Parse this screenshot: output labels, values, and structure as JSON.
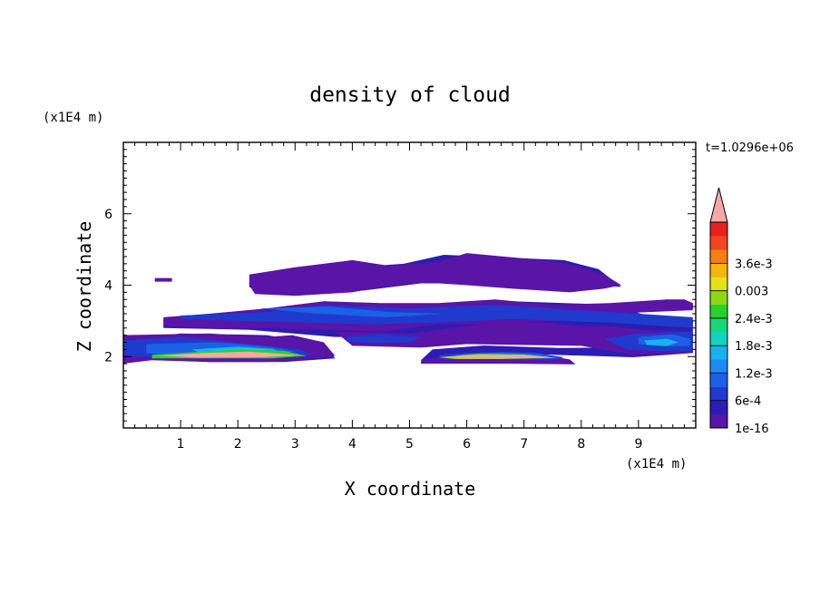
{
  "chart_data": {
    "type": "heatmap",
    "title": "density of cloud",
    "xlabel": "X coordinate",
    "ylabel": "Z coordinate",
    "x_unit": "(x1E4 m)",
    "y_unit": "(x1E4 m)",
    "time_label": "t=1.0296e+06",
    "xlim": [
      0,
      10
    ],
    "ylim": [
      0,
      8
    ],
    "x_ticks": [
      "1",
      "2",
      "3",
      "4",
      "5",
      "6",
      "7",
      "8",
      "9"
    ],
    "x_tick_values": [
      1,
      2,
      3,
      4,
      5,
      6,
      7,
      8,
      9
    ],
    "y_ticks": [
      "2",
      "4",
      "6"
    ],
    "y_tick_values": [
      2,
      4,
      6
    ],
    "colorbar": {
      "labels": [
        "1e-16",
        "6e-4",
        "1.2e-3",
        "1.8e-3",
        "2.4e-3",
        "0.003",
        "3.6e-3"
      ],
      "colors": [
        "#5a14a8",
        "#2c1cb4",
        "#1f3acc",
        "#1d60e8",
        "#1e88f5",
        "#17b4ec",
        "#14d2c0",
        "#19d67c",
        "#27d22a",
        "#8cd818",
        "#e2e218",
        "#f6b410",
        "#f47e14",
        "#f0461e",
        "#e8201e"
      ],
      "extend_color": "#f4a8a8"
    },
    "regions": [
      {
        "level": 1,
        "polygon": [
          [
            5.4,
            2.2
          ],
          [
            6.3,
            2.31
          ],
          [
            7.6,
            2.24
          ],
          [
            8.9,
            2.26
          ],
          [
            9.95,
            2.7
          ],
          [
            9.95,
            2.1
          ],
          [
            8.9,
            1.98
          ],
          [
            6.5,
            2.1
          ],
          [
            5.2,
            1.9
          ]
        ]
      },
      {
        "level": 1,
        "polygon": [
          [
            -0.02,
            2.4
          ],
          [
            1.0,
            2.65
          ],
          [
            2.5,
            2.6
          ],
          [
            3.5,
            2.35
          ],
          [
            3.7,
            1.95
          ],
          [
            2.8,
            1.85
          ],
          [
            1.5,
            1.85
          ],
          [
            0.5,
            1.95
          ],
          [
            -0.02,
            1.85
          ]
        ]
      },
      {
        "level": 1,
        "polygon": [
          [
            0.7,
            3.05
          ],
          [
            2.2,
            3.3
          ],
          [
            3.5,
            3.5
          ],
          [
            4.8,
            3.45
          ],
          [
            6.8,
            3.55
          ],
          [
            8.6,
            3.45
          ],
          [
            9.3,
            3.05
          ],
          [
            9.95,
            3.0
          ],
          [
            9.95,
            2.4
          ],
          [
            8.5,
            2.6
          ],
          [
            6.8,
            2.75
          ],
          [
            5.5,
            2.6
          ],
          [
            4.3,
            2.55
          ],
          [
            3.7,
            2.55
          ],
          [
            2.2,
            2.75
          ],
          [
            0.7,
            2.8
          ]
        ]
      },
      {
        "level": 1,
        "polygon": [
          [
            2.2,
            4.1
          ],
          [
            3.1,
            4.4
          ],
          [
            4.9,
            4.6
          ],
          [
            5.6,
            4.85
          ],
          [
            7.7,
            4.7
          ],
          [
            8.3,
            4.45
          ],
          [
            8.7,
            3.95
          ],
          [
            7.0,
            4.15
          ],
          [
            6.1,
            4.05
          ],
          [
            5.2,
            4.05
          ],
          [
            4.2,
            3.85
          ],
          [
            2.4,
            3.75
          ],
          [
            2.2,
            3.95
          ]
        ]
      },
      {
        "level": 0,
        "polygon": [
          [
            -0.02,
            2.6
          ],
          [
            1.5,
            2.65
          ],
          [
            2.5,
            2.55
          ],
          [
            2.95,
            2.6
          ],
          [
            3.5,
            2.4
          ],
          [
            3.7,
            2.02
          ],
          [
            3.0,
            1.9
          ],
          [
            2.5,
            1.85
          ],
          [
            1.5,
            1.85
          ],
          [
            0.5,
            1.9
          ],
          [
            -0.02,
            1.8
          ]
        ]
      },
      {
        "level": 0,
        "polygon": [
          [
            0.7,
            3.1
          ],
          [
            1.5,
            3.2
          ],
          [
            2.5,
            3.35
          ],
          [
            3.5,
            3.55
          ],
          [
            4.5,
            3.5
          ],
          [
            5.5,
            3.5
          ],
          [
            6.5,
            3.6
          ],
          [
            7.5,
            3.45
          ],
          [
            8.5,
            3.5
          ],
          [
            9.5,
            3.6
          ],
          [
            9.95,
            3.5
          ],
          [
            9.95,
            3.3
          ],
          [
            8.5,
            3.2
          ],
          [
            7.5,
            3.0
          ],
          [
            6.5,
            2.9
          ],
          [
            5.5,
            2.9
          ],
          [
            4.5,
            2.7
          ],
          [
            3.5,
            2.75
          ],
          [
            2.5,
            2.8
          ],
          [
            1.5,
            2.8
          ],
          [
            0.7,
            2.85
          ]
        ]
      },
      {
        "level": 0,
        "polygon": [
          [
            3.7,
            2.7
          ],
          [
            5.0,
            2.65
          ],
          [
            6.0,
            2.85
          ],
          [
            6.5,
            2.95
          ],
          [
            7.5,
            2.95
          ],
          [
            8.0,
            2.85
          ],
          [
            8.6,
            2.85
          ],
          [
            9.0,
            2.75
          ],
          [
            9.95,
            2.7
          ],
          [
            9.95,
            2.1
          ],
          [
            8.9,
            2.05
          ],
          [
            8.0,
            2.3
          ],
          [
            6.0,
            2.35
          ],
          [
            5.2,
            2.25
          ],
          [
            4.0,
            2.3
          ]
        ]
      },
      {
        "level": 0,
        "polygon": [
          [
            5.2,
            1.9
          ],
          [
            5.8,
            2.05
          ],
          [
            6.5,
            2.08
          ],
          [
            7.3,
            2.05
          ],
          [
            7.8,
            1.92
          ],
          [
            7.9,
            1.78
          ],
          [
            6.8,
            1.8
          ],
          [
            5.5,
            1.8
          ],
          [
            5.2,
            1.8
          ]
        ]
      },
      {
        "level": 0,
        "polygon": [
          [
            2.2,
            4.3
          ],
          [
            3.0,
            4.5
          ],
          [
            4.0,
            4.7
          ],
          [
            4.6,
            4.55
          ],
          [
            5.5,
            4.65
          ],
          [
            6.0,
            4.9
          ],
          [
            7.0,
            4.75
          ],
          [
            7.6,
            4.65
          ],
          [
            8.0,
            4.5
          ],
          [
            8.4,
            4.3
          ],
          [
            8.7,
            4.0
          ],
          [
            8.4,
            3.9
          ],
          [
            7.8,
            3.8
          ],
          [
            6.8,
            3.9
          ],
          [
            6.0,
            4.0
          ],
          [
            5.5,
            4.05
          ],
          [
            5.0,
            4.05
          ],
          [
            4.5,
            3.95
          ],
          [
            4.0,
            3.8
          ],
          [
            3.0,
            3.7
          ],
          [
            2.3,
            3.75
          ],
          [
            2.2,
            4.0
          ]
        ]
      },
      {
        "level": 0,
        "polygon": [
          [
            9.5,
            3.6
          ],
          [
            9.8,
            3.6
          ],
          [
            9.95,
            3.5
          ],
          [
            9.95,
            3.35
          ],
          [
            9.6,
            3.45
          ]
        ]
      },
      {
        "level": 0,
        "polygon": [
          [
            0.55,
            4.2
          ],
          [
            0.85,
            4.2
          ],
          [
            0.85,
            4.1
          ],
          [
            0.55,
            4.1
          ]
        ]
      },
      {
        "level": 2,
        "polygon": [
          [
            -0.02,
            2.45
          ],
          [
            1.0,
            2.55
          ],
          [
            2.2,
            2.35
          ],
          [
            3.1,
            2.2
          ],
          [
            3.3,
            2.05
          ],
          [
            2.6,
            1.97
          ],
          [
            1.8,
            1.97
          ],
          [
            1.0,
            1.97
          ],
          [
            0.2,
            2.0
          ],
          [
            -0.02,
            2.05
          ]
        ]
      },
      {
        "level": 2,
        "polygon": [
          [
            1.0,
            3.15
          ],
          [
            2.5,
            3.25
          ],
          [
            3.5,
            3.45
          ],
          [
            5.0,
            3.35
          ],
          [
            6.5,
            3.45
          ],
          [
            8.0,
            3.3
          ],
          [
            9.0,
            3.2
          ],
          [
            9.95,
            3.1
          ],
          [
            9.95,
            2.8
          ],
          [
            8.5,
            2.95
          ],
          [
            6.8,
            3.05
          ],
          [
            5.5,
            2.95
          ],
          [
            4.3,
            2.9
          ],
          [
            3.2,
            2.95
          ],
          [
            2.0,
            3.0
          ],
          [
            1.0,
            3.05
          ]
        ]
      },
      {
        "level": 2,
        "polygon": [
          [
            8.4,
            2.5
          ],
          [
            9.0,
            2.65
          ],
          [
            9.95,
            2.7
          ],
          [
            9.95,
            2.15
          ],
          [
            9.4,
            2.15
          ],
          [
            8.8,
            2.2
          ]
        ]
      },
      {
        "level": 2,
        "polygon": [
          [
            3.9,
            2.55
          ],
          [
            4.5,
            2.62
          ],
          [
            5.2,
            2.55
          ],
          [
            5.0,
            2.4
          ],
          [
            4.4,
            2.38
          ],
          [
            3.9,
            2.42
          ]
        ]
      },
      {
        "level": 2,
        "polygon": [
          [
            5.5,
            2.05
          ],
          [
            6.3,
            2.14
          ],
          [
            7.1,
            2.12
          ],
          [
            7.7,
            1.98
          ],
          [
            7.5,
            1.9
          ],
          [
            6.5,
            1.92
          ],
          [
            5.6,
            1.92
          ]
        ]
      },
      {
        "level": 3,
        "polygon": [
          [
            0.4,
            2.35
          ],
          [
            1.6,
            2.4
          ],
          [
            2.4,
            2.3
          ],
          [
            3.0,
            2.15
          ],
          [
            2.6,
            2.0
          ],
          [
            1.8,
            1.98
          ],
          [
            1.0,
            2.0
          ],
          [
            0.4,
            2.1
          ]
        ]
      },
      {
        "level": 3,
        "polygon": [
          [
            9.0,
            2.55
          ],
          [
            9.6,
            2.62
          ],
          [
            9.9,
            2.5
          ],
          [
            9.9,
            2.3
          ],
          [
            9.4,
            2.28
          ],
          [
            9.0,
            2.35
          ]
        ]
      },
      {
        "level": 3,
        "polygon": [
          [
            5.8,
            2.05
          ],
          [
            6.6,
            2.12
          ],
          [
            7.3,
            2.08
          ],
          [
            7.5,
            1.96
          ],
          [
            6.7,
            1.95
          ],
          [
            5.9,
            1.96
          ]
        ]
      },
      {
        "level": 3,
        "polygon": [
          [
            2.4,
            3.35
          ],
          [
            3.6,
            3.4
          ],
          [
            4.6,
            3.25
          ],
          [
            5.6,
            3.2
          ],
          [
            4.6,
            3.1
          ],
          [
            3.4,
            3.2
          ]
        ]
      },
      {
        "level": 5,
        "polygon": [
          [
            1.2,
            2.2
          ],
          [
            2.0,
            2.28
          ],
          [
            2.6,
            2.22
          ],
          [
            2.8,
            2.1
          ],
          [
            2.2,
            2.05
          ],
          [
            1.4,
            2.05
          ]
        ]
      },
      {
        "level": 5,
        "polygon": [
          [
            9.1,
            2.45
          ],
          [
            9.5,
            2.5
          ],
          [
            9.7,
            2.4
          ],
          [
            9.5,
            2.3
          ],
          [
            9.15,
            2.33
          ]
        ]
      },
      {
        "level": 6,
        "polygon": [
          [
            1.5,
            2.18
          ],
          [
            2.1,
            2.24
          ],
          [
            2.5,
            2.2
          ],
          [
            2.4,
            2.12
          ],
          [
            1.7,
            2.1
          ]
        ]
      },
      {
        "level": 8,
        "polygon": [
          [
            0.5,
            2.05
          ],
          [
            1.2,
            2.12
          ],
          [
            2.0,
            2.2
          ],
          [
            2.8,
            2.16
          ],
          [
            3.2,
            2.02
          ],
          [
            2.6,
            1.95
          ],
          [
            1.4,
            1.95
          ],
          [
            0.5,
            1.95
          ]
        ]
      },
      {
        "level": 9,
        "polygon": [
          [
            5.5,
            1.98
          ],
          [
            6.2,
            2.08
          ],
          [
            7.0,
            2.06
          ],
          [
            7.6,
            1.96
          ],
          [
            6.6,
            1.93
          ],
          [
            5.8,
            1.93
          ]
        ]
      },
      {
        "level": 15,
        "polygon": [
          [
            0.6,
            2.02
          ],
          [
            1.4,
            2.1
          ],
          [
            2.2,
            2.14
          ],
          [
            3.1,
            2.04
          ],
          [
            2.4,
            1.98
          ],
          [
            1.3,
            1.97
          ]
        ]
      },
      {
        "level": 15,
        "polygon": [
          [
            5.6,
            1.98
          ],
          [
            6.3,
            2.05
          ],
          [
            7.0,
            2.04
          ],
          [
            7.5,
            1.97
          ],
          [
            6.6,
            1.95
          ],
          [
            5.9,
            1.95
          ]
        ]
      }
    ]
  }
}
